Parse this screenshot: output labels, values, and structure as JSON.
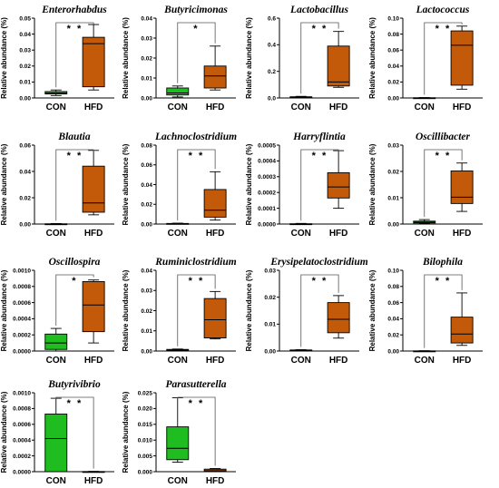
{
  "colors": {
    "con": "#1fbd1f",
    "hfd": "#c35a0a",
    "stroke": "#000000"
  },
  "chart_data": [
    {
      "type": "boxplot",
      "title": "Enterorhabdus",
      "ylabel": "Relative abundance (%)",
      "categories": [
        "CON",
        "HFD"
      ],
      "ylim": [
        0,
        0.05
      ],
      "ticks": [
        "0.00",
        "0.01",
        "0.02",
        "0.03",
        "0.04",
        "0.05"
      ],
      "tick_values": [
        0,
        0.01,
        0.02,
        0.03,
        0.04,
        0.05
      ],
      "significance": "* *",
      "boxes": [
        {
          "min": 0.0015,
          "q1": 0.0025,
          "median": 0.003,
          "q3": 0.004,
          "max": 0.005
        },
        {
          "min": 0.005,
          "q1": 0.007,
          "median": 0.034,
          "q3": 0.038,
          "max": 0.046
        }
      ]
    },
    {
      "type": "boxplot",
      "title": "Butyricimonas",
      "ylabel": "Relative abundance (%)",
      "categories": [
        "CON",
        "HFD"
      ],
      "ylim": [
        0,
        0.04
      ],
      "ticks": [
        "0.00",
        "0.01",
        "0.02",
        "0.03",
        "0.04"
      ],
      "tick_values": [
        0,
        0.01,
        0.02,
        0.03,
        0.04
      ],
      "significance": "*",
      "boxes": [
        {
          "min": 0.0005,
          "q1": 0.0015,
          "median": 0.0025,
          "q3": 0.005,
          "max": 0.006
        },
        {
          "min": 0.004,
          "q1": 0.005,
          "median": 0.011,
          "q3": 0.016,
          "max": 0.026
        }
      ]
    },
    {
      "type": "boxplot",
      "title": "Lactobacillus",
      "ylabel": "Relative abundance (%)",
      "categories": [
        "CON",
        "HFD"
      ],
      "ylim": [
        0,
        0.6
      ],
      "ticks": [
        "0.0",
        "0.2",
        "0.4",
        "0.6"
      ],
      "tick_values": [
        0,
        0.2,
        0.4,
        0.6
      ],
      "significance": "* *",
      "boxes": [
        {
          "min": 0.003,
          "q1": 0.005,
          "median": 0.007,
          "q3": 0.009,
          "max": 0.012
        },
        {
          "min": 0.08,
          "q1": 0.09,
          "median": 0.12,
          "q3": 0.39,
          "max": 0.5
        }
      ]
    },
    {
      "type": "boxplot",
      "title": "Lactococcus",
      "ylabel": "Relative abundance (%)",
      "categories": [
        "CON",
        "HFD"
      ],
      "ylim": [
        0,
        0.1
      ],
      "ticks": [
        "0.00",
        "0.02",
        "0.04",
        "0.06",
        "0.08",
        "0.10"
      ],
      "tick_values": [
        0,
        0.02,
        0.04,
        0.06,
        0.08,
        0.1
      ],
      "significance": "* *",
      "boxes": [
        {
          "min": 0.0,
          "q1": 0.0,
          "median": 0.0,
          "q3": 0.0003,
          "max": 0.0005
        },
        {
          "min": 0.011,
          "q1": 0.016,
          "median": 0.066,
          "q3": 0.084,
          "max": 0.09
        }
      ]
    },
    {
      "type": "boxplot",
      "title": "Blautia",
      "ylabel": "Relative abundance (%)",
      "categories": [
        "CON",
        "HFD"
      ],
      "ylim": [
        0,
        0.06
      ],
      "ticks": [
        "0.00",
        "0.02",
        "0.04",
        "0.06"
      ],
      "tick_values": [
        0,
        0.02,
        0.04,
        0.06
      ],
      "significance": "* *",
      "boxes": [
        {
          "min": 0.0,
          "q1": 0.0,
          "median": 0.0,
          "q3": 0.0002,
          "max": 0.0004
        },
        {
          "min": 0.007,
          "q1": 0.009,
          "median": 0.016,
          "q3": 0.044,
          "max": 0.056
        }
      ]
    },
    {
      "type": "boxplot",
      "title": "Lachnoclostridium",
      "ylabel": "Relative abundance (%)",
      "categories": [
        "CON",
        "HFD"
      ],
      "ylim": [
        0,
        0.08
      ],
      "ticks": [
        "0.00",
        "0.02",
        "0.04",
        "0.06",
        "0.08"
      ],
      "tick_values": [
        0,
        0.02,
        0.04,
        0.06,
        0.08
      ],
      "significance": "* *",
      "boxes": [
        {
          "min": 0.0,
          "q1": 0.0002,
          "median": 0.0004,
          "q3": 0.0006,
          "max": 0.0009
        },
        {
          "min": 0.004,
          "q1": 0.007,
          "median": 0.014,
          "q3": 0.035,
          "max": 0.053
        }
      ]
    },
    {
      "type": "boxplot",
      "title": "Harryflintia",
      "ylabel": "Relative abundance (%)",
      "categories": [
        "CON",
        "HFD"
      ],
      "ylim": [
        0,
        0.0005
      ],
      "ticks": [
        "0.0000",
        "0.0001",
        "0.0002",
        "0.0003",
        "0.0004",
        "0.0005"
      ],
      "tick_values": [
        0,
        0.0001,
        0.0002,
        0.0003,
        0.0004,
        0.0005
      ],
      "significance": "* *",
      "boxes": [
        {
          "min": 0.0,
          "q1": 0.0,
          "median": 0.0,
          "q3": 2e-06,
          "max": 4e-06
        },
        {
          "min": 0.0001,
          "q1": 0.000165,
          "median": 0.000235,
          "q3": 0.000325,
          "max": 0.000465
        }
      ]
    },
    {
      "type": "boxplot",
      "title": "Oscillibacter",
      "ylabel": "Relative abundance (%)",
      "categories": [
        "CON",
        "HFD"
      ],
      "ylim": [
        0,
        0.03
      ],
      "ticks": [
        "0.00",
        "0.01",
        "0.02",
        "0.03"
      ],
      "tick_values": [
        0,
        0.01,
        0.02,
        0.03
      ],
      "significance": "* *",
      "boxes": [
        {
          "min": 0.0002,
          "q1": 0.0004,
          "median": 0.0007,
          "q3": 0.0011,
          "max": 0.0017
        },
        {
          "min": 0.0048,
          "q1": 0.0078,
          "median": 0.0102,
          "q3": 0.0202,
          "max": 0.0232
        }
      ]
    },
    {
      "type": "boxplot",
      "title": "Oscillospira",
      "ylabel": "Relative abundance (%)",
      "categories": [
        "CON",
        "HFD"
      ],
      "ylim": [
        0,
        0.001
      ],
      "ticks": [
        "0.0000",
        "0.0002",
        "0.0004",
        "0.0006",
        "0.0008",
        "0.0010"
      ],
      "tick_values": [
        0,
        0.0002,
        0.0004,
        0.0006,
        0.0008,
        0.001
      ],
      "significance": "*",
      "boxes": [
        {
          "min": 0.0,
          "q1": 2e-05,
          "median": 0.0001,
          "q3": 0.00021,
          "max": 0.00028
        },
        {
          "min": 0.0001,
          "q1": 0.00024,
          "median": 0.00057,
          "q3": 0.00086,
          "max": 0.00088
        }
      ]
    },
    {
      "type": "boxplot",
      "title": "Ruminiclostridium",
      "ylabel": "Relative abundance (%)",
      "categories": [
        "CON",
        "HFD"
      ],
      "ylim": [
        0,
        0.04
      ],
      "ticks": [
        "0.00",
        "0.01",
        "0.02",
        "0.03",
        "0.04"
      ],
      "tick_values": [
        0,
        0.01,
        0.02,
        0.03,
        0.04
      ],
      "significance": "* *",
      "boxes": [
        {
          "min": 0.0,
          "q1": 0.0002,
          "median": 0.0005,
          "q3": 0.0008,
          "max": 0.001
        },
        {
          "min": 0.006,
          "q1": 0.0065,
          "median": 0.0155,
          "q3": 0.026,
          "max": 0.0295
        }
      ]
    },
    {
      "type": "boxplot",
      "title": "Erysipelatoclostridium",
      "ylabel": "Relative abundance (%)",
      "categories": [
        "CON",
        "HFD"
      ],
      "ylim": [
        0,
        0.03
      ],
      "ticks": [
        "0.00",
        "0.01",
        "0.02",
        "0.03"
      ],
      "tick_values": [
        0,
        0.01,
        0.02,
        0.03
      ],
      "significance": "* *",
      "boxes": [
        {
          "min": 0.0,
          "q1": 0.0001,
          "median": 0.0002,
          "q3": 0.0004,
          "max": 0.0005
        },
        {
          "min": 0.0048,
          "q1": 0.0068,
          "median": 0.0118,
          "q3": 0.018,
          "max": 0.0206
        }
      ]
    },
    {
      "type": "boxplot",
      "title": "Bilophila",
      "ylabel": "Relative abundance (%)",
      "categories": [
        "CON",
        "HFD"
      ],
      "ylim": [
        0,
        0.1
      ],
      "ticks": [
        "0.00",
        "0.02",
        "0.04",
        "0.06",
        "0.08",
        "0.10"
      ],
      "tick_values": [
        0,
        0.02,
        0.04,
        0.06,
        0.08,
        0.1
      ],
      "significance": "* *",
      "boxes": [
        {
          "min": 0.0,
          "q1": 0.0,
          "median": 0.0,
          "q3": 0.0002,
          "max": 0.0004
        },
        {
          "min": 0.007,
          "q1": 0.01,
          "median": 0.021,
          "q3": 0.042,
          "max": 0.072
        }
      ]
    },
    {
      "type": "boxplot",
      "title": "Butyrivibrio",
      "ylabel": "Relative abundance (%)",
      "categories": [
        "CON",
        "HFD"
      ],
      "ylim": [
        0,
        0.001
      ],
      "ticks": [
        "0.0000",
        "0.0002",
        "0.0004",
        "0.0006",
        "0.0008",
        "0.0010"
      ],
      "tick_values": [
        0,
        0.0002,
        0.0004,
        0.0006,
        0.0008,
        0.001
      ],
      "significance": "* *",
      "boxes": [
        {
          "min": 0.0,
          "q1": 0.0,
          "median": 0.00042,
          "q3": 0.00073,
          "max": 0.00093
        },
        {
          "min": 0.0,
          "q1": 0.0,
          "median": 0.0,
          "q3": 2e-06,
          "max": 4e-06
        }
      ]
    },
    {
      "type": "boxplot",
      "title": "Parasutterella",
      "ylabel": "Relative abundance (%)",
      "categories": [
        "CON",
        "HFD"
      ],
      "ylim": [
        0,
        0.025
      ],
      "ticks": [
        "0.000",
        "0.005",
        "0.010",
        "0.015",
        "0.020",
        "0.025"
      ],
      "tick_values": [
        0,
        0.005,
        0.01,
        0.015,
        0.02,
        0.025
      ],
      "significance": "* *",
      "boxes": [
        {
          "min": 0.003,
          "q1": 0.0038,
          "median": 0.0074,
          "q3": 0.0142,
          "max": 0.0234
        },
        {
          "min": 0.0,
          "q1": 0.0001,
          "median": 0.0003,
          "q3": 0.0008,
          "max": 0.001
        }
      ]
    }
  ]
}
